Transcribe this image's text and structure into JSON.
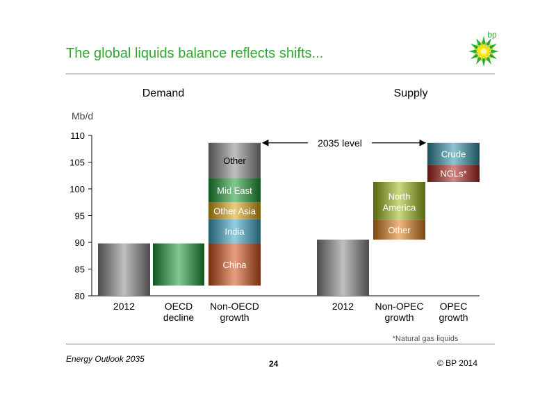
{
  "header": {
    "title": "The global liquids balance reflects shifts..."
  },
  "logo": {
    "text": "bp"
  },
  "footer": {
    "left": "Energy Outlook 2035",
    "page": "24",
    "right": "© BP 2014"
  },
  "footnote": "*Natural gas liquids",
  "chart_data": {
    "type": "bar",
    "subtype": "waterfall",
    "unit_label": "Mb/d",
    "ylim": [
      80,
      110
    ],
    "yticks": [
      80,
      85,
      90,
      95,
      100,
      105,
      110
    ],
    "grid": false,
    "groups": [
      {
        "title": "Demand",
        "bars": [
          {
            "label": "2012",
            "segments": [
              {
                "name": "",
                "from": 80,
                "to": 89.8,
                "color": "#8a8a8a"
              }
            ]
          },
          {
            "label": "OECD decline",
            "segments": [
              {
                "name": "",
                "from": 81.9,
                "to": 89.8,
                "color": "#1e9b3a"
              }
            ]
          },
          {
            "label": "Non-OECD growth",
            "segments": [
              {
                "name": "China",
                "from": 81.9,
                "to": 89.8,
                "color": "#d5521a"
              },
              {
                "name": "India",
                "from": 89.8,
                "to": 94.3,
                "color": "#3fa7c9"
              },
              {
                "name": "Other Asia",
                "from": 94.3,
                "to": 97.5,
                "color": "#e0a814"
              },
              {
                "name": "Mid East",
                "from": 97.5,
                "to": 102,
                "color": "#1f9a36"
              },
              {
                "name": "Other",
                "from": 102,
                "to": 108.6,
                "color": "#8c8c8c"
              }
            ]
          }
        ]
      },
      {
        "title": "Supply",
        "bars": [
          {
            "label": "2012",
            "segments": [
              {
                "name": "",
                "from": 80,
                "to": 90.5,
                "color": "#8a8a8a"
              }
            ]
          },
          {
            "label": "Non-OPEC growth",
            "segments": [
              {
                "name": "Other",
                "from": 90.5,
                "to": 94.2,
                "color": "#e07e1c"
              },
              {
                "name": "North America",
                "from": 94.2,
                "to": 101.3,
                "color": "#9cbb1a"
              }
            ]
          },
          {
            "label": "OPEC growth",
            "segments": [
              {
                "name": "NGLs*",
                "from": 101.3,
                "to": 104.5,
                "color": "#b0231c"
              },
              {
                "name": "Crude",
                "from": 104.5,
                "to": 108.6,
                "color": "#2f93a7"
              }
            ]
          }
        ]
      }
    ],
    "annotations": [
      {
        "text": "2035 level",
        "y": 108.6
      }
    ]
  }
}
